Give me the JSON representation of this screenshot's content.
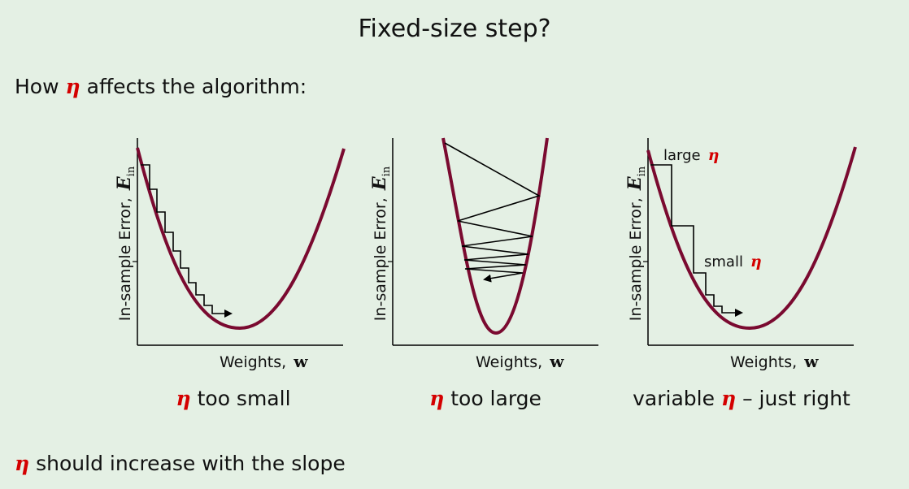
{
  "title": "Fixed-size step?",
  "intro": {
    "prefix": "How",
    "eta": "η",
    "suffix": "affects the algorithm:"
  },
  "panels": [
    {
      "y_label": "In-sample Error,",
      "y_symbol": "E",
      "y_sub": "in",
      "x_label": "Weights,",
      "x_symbol": "w",
      "caption_eta": "η",
      "caption_text": "too small"
    },
    {
      "y_label": "In-sample Error,",
      "y_symbol": "E",
      "y_sub": "in",
      "x_label": "Weights,",
      "x_symbol": "w",
      "caption_eta": "η",
      "caption_text": "too large"
    },
    {
      "y_label": "In-sample Error,",
      "y_symbol": "E",
      "y_sub": "in",
      "x_label": "Weights,",
      "x_symbol": "w",
      "caption_pre": "variable",
      "caption_eta": "η",
      "caption_text": "– just right",
      "annotation_large": "large",
      "annotation_small": "small",
      "annotation_eta": "η"
    }
  ],
  "footer": {
    "eta": "η",
    "text": "should increase with the slope"
  },
  "colors": {
    "curve": "#7a0a30",
    "eta": "#d40000",
    "background": "#e4f0e4"
  }
}
